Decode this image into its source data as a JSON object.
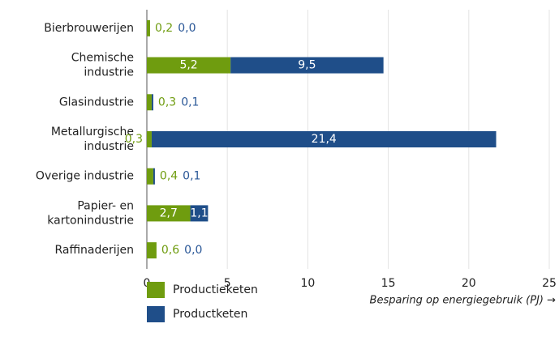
{
  "chart_data": {
    "type": "stacked-bar-horizontal",
    "categories": [
      [
        "Bierbrouwerijen"
      ],
      [
        "Chemische",
        "industrie"
      ],
      [
        "Glasindustrie"
      ],
      [
        "Metallurgische",
        "industrie"
      ],
      [
        "Overige industrie"
      ],
      [
        "Papier- en",
        "kartonindustrie"
      ],
      [
        "Raffinaderijen"
      ]
    ],
    "series": [
      {
        "name": "Productieketen",
        "color": "#6f9c0f",
        "label_color": "#6f9c0f",
        "values": [
          0.2,
          5.2,
          0.3,
          0.3,
          0.4,
          2.7,
          0.6
        ],
        "value_labels": [
          "0,2",
          "5,2",
          "0,3",
          "0,3",
          "0,4",
          "2,7",
          "0,6"
        ]
      },
      {
        "name": "Productketen",
        "color": "#1f4e89",
        "label_color": "#2a5797",
        "values": [
          0.0,
          9.5,
          0.1,
          21.4,
          0.1,
          1.1,
          0.0
        ],
        "value_labels": [
          "0,0",
          "9,5",
          "0,1",
          "21,4",
          "0,1",
          "1,1",
          "0,0"
        ]
      }
    ],
    "xlim": [
      0,
      25
    ],
    "xticks": [
      0,
      5,
      10,
      15,
      20,
      25
    ],
    "xlabel": "Besparing op energiegebruik (PJ) →",
    "grid": true
  }
}
